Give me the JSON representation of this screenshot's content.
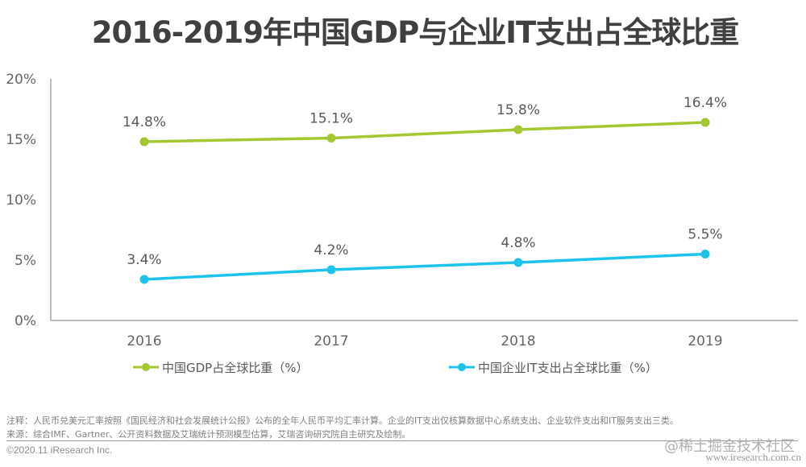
{
  "chart_data": {
    "type": "line",
    "title": "2016-2019年中国GDP与企业IT支出占全球比重",
    "xlabel": "",
    "ylabel": "",
    "categories": [
      "2016",
      "2017",
      "2018",
      "2019"
    ],
    "ylim": [
      0,
      20
    ],
    "yticks": [
      0,
      5,
      10,
      15,
      20
    ],
    "ytick_labels": [
      "0%",
      "5%",
      "10%",
      "15%",
      "20%"
    ],
    "grid": false,
    "legend_position": "bottom",
    "series": [
      {
        "name": "中国GDP占全球比重（%）",
        "values": [
          14.8,
          15.1,
          15.8,
          16.4
        ],
        "labels": [
          "14.8%",
          "15.1%",
          "15.8%",
          "16.4%"
        ],
        "color": "#a5c832"
      },
      {
        "name": "中国企业IT支出占全球比重（%）",
        "values": [
          3.4,
          4.2,
          4.8,
          5.5
        ],
        "labels": [
          "3.4%",
          "4.2%",
          "4.8%",
          "5.5%"
        ],
        "color": "#1ec3eb"
      }
    ]
  },
  "footer": {
    "note": "注释：人民币兑美元汇率按照《国民经济和社会发展统计公报》公布的全年人民币平均汇率计算。企业的IT支出仅核算数据中心系统支出、企业软件支出和IT服务支出三类。",
    "source": "来源：综合IMF、Gartner、公开资料数据及艾瑞统计预测模型估算，艾瑞咨询研究院自主研究及绘制。",
    "copyright": "©2020.11 iResearch Inc.",
    "watermark": "@稀土掘金技术社区",
    "website": "www.iresearch.com.cn"
  }
}
